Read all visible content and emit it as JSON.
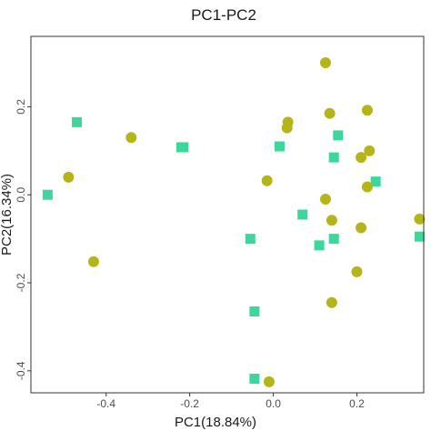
{
  "chart_data": {
    "type": "scatter",
    "title": "PC1-PC2",
    "xlabel": "PC1(18.84%)",
    "ylabel": "PC2(16.34%)",
    "xlim": [
      -0.58,
      0.36
    ],
    "ylim": [
      -0.45,
      0.36
    ],
    "xticks": [
      -0.4,
      -0.2,
      0.0,
      0.2
    ],
    "xtick_labels": [
      "-0.4",
      "-0.2",
      "0.0",
      "0.2"
    ],
    "yticks": [
      -0.4,
      -0.2,
      0.0,
      0.2
    ],
    "ytick_labels": [
      "-0.4",
      "-0.2",
      "0.0",
      "0.2"
    ],
    "grid": false,
    "legend": "none",
    "series": [
      {
        "marker": "square",
        "color": "#3dd69b",
        "points": [
          {
            "x": -0.54,
            "y": 0.0
          },
          {
            "x": -0.47,
            "y": 0.165
          },
          {
            "x": -0.215,
            "y": 0.108
          },
          {
            "x": -0.22,
            "y": 0.108
          },
          {
            "x": 0.015,
            "y": 0.11
          },
          {
            "x": 0.155,
            "y": 0.135
          },
          {
            "x": 0.145,
            "y": 0.085
          },
          {
            "x": 0.245,
            "y": 0.03
          },
          {
            "x": 0.07,
            "y": -0.045
          },
          {
            "x": -0.055,
            "y": -0.1
          },
          {
            "x": 0.11,
            "y": -0.115
          },
          {
            "x": 0.145,
            "y": -0.1
          },
          {
            "x": -0.045,
            "y": -0.265
          },
          {
            "x": -0.045,
            "y": -0.418
          },
          {
            "x": 0.35,
            "y": -0.095
          }
        ]
      },
      {
        "marker": "circle",
        "color": "#b5b51a",
        "points": [
          {
            "x": -0.34,
            "y": 0.13
          },
          {
            "x": -0.49,
            "y": 0.04
          },
          {
            "x": -0.43,
            "y": -0.152
          },
          {
            "x": 0.125,
            "y": 0.3
          },
          {
            "x": 0.135,
            "y": 0.185
          },
          {
            "x": 0.225,
            "y": 0.192
          },
          {
            "x": 0.035,
            "y": 0.165
          },
          {
            "x": 0.033,
            "y": 0.152
          },
          {
            "x": 0.23,
            "y": 0.1
          },
          {
            "x": 0.21,
            "y": 0.085
          },
          {
            "x": -0.015,
            "y": 0.032
          },
          {
            "x": 0.225,
            "y": 0.018
          },
          {
            "x": 0.125,
            "y": -0.01
          },
          {
            "x": 0.14,
            "y": -0.058
          },
          {
            "x": 0.21,
            "y": -0.075
          },
          {
            "x": 0.35,
            "y": -0.055
          },
          {
            "x": 0.2,
            "y": -0.175
          },
          {
            "x": 0.14,
            "y": -0.245
          },
          {
            "x": -0.01,
            "y": -0.425
          }
        ]
      }
    ]
  }
}
